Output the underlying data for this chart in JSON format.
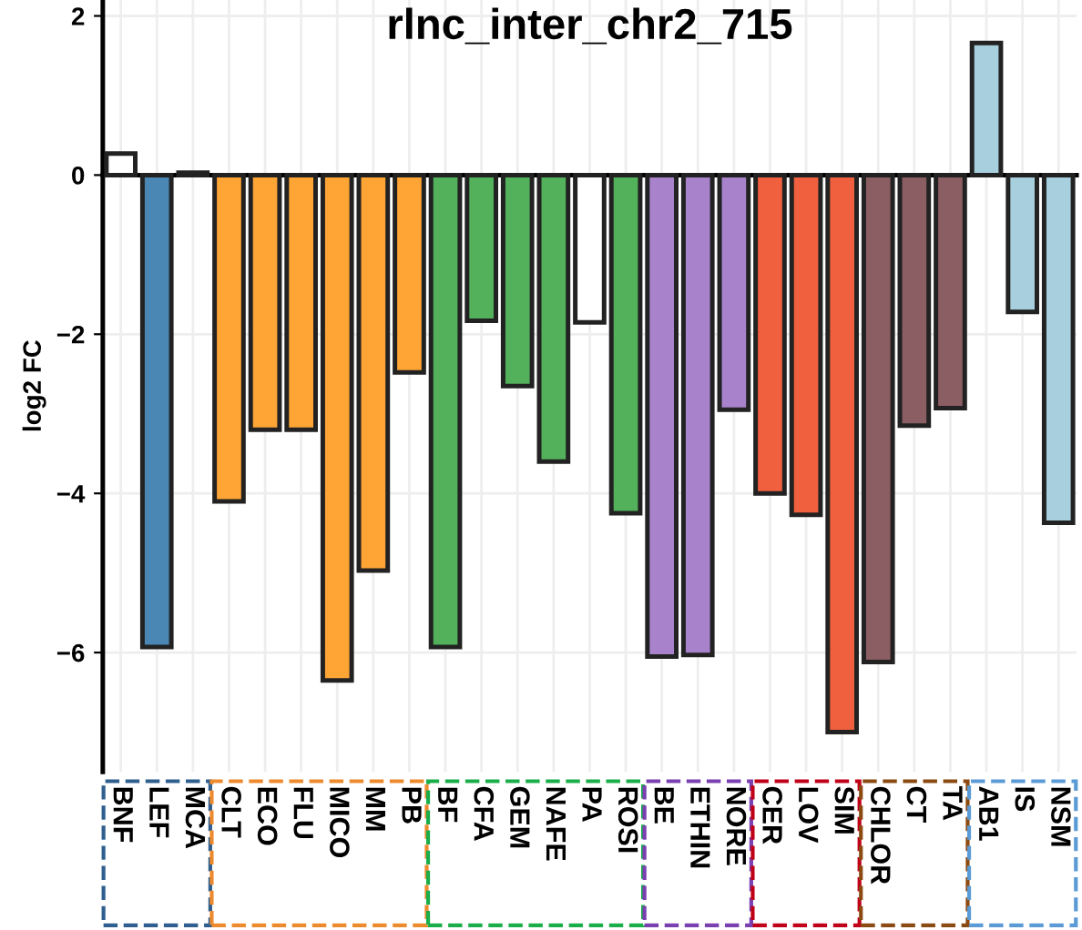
{
  "chart_data": {
    "type": "bar",
    "title": "rlnc_inter_chr2_715",
    "ylabel": "log2 FC",
    "categories": [
      "BNF",
      "LEF",
      "MCA",
      "CLT",
      "ECO",
      "FLU",
      "MICO",
      "MM",
      "PB",
      "BF",
      "CFA",
      "GEM",
      "NAFE",
      "PA",
      "ROSI",
      "BE",
      "ETHIN",
      "NORE",
      "CER",
      "LOV",
      "SIM",
      "CHLOR",
      "CT",
      "TA",
      "AB1",
      "IS",
      "NSM"
    ],
    "values": [
      0.27,
      -5.93,
      0.03,
      -4.1,
      -3.2,
      -3.2,
      -6.35,
      -4.97,
      -2.48,
      -5.93,
      -1.83,
      -2.65,
      -3.6,
      -1.85,
      -4.25,
      -6.05,
      -6.03,
      -2.95,
      -4.0,
      -4.27,
      -7.0,
      -6.12,
      -3.15,
      -2.93,
      1.66,
      -1.72,
      -4.37
    ],
    "colors": [
      "#ffffff",
      "#4a87b4",
      "#ffffff",
      "#ffa535",
      "#ffa535",
      "#ffa535",
      "#ffa535",
      "#ffa535",
      "#ffa535",
      "#52b15a",
      "#52b15a",
      "#52b15a",
      "#52b15a",
      "#ffffff",
      "#52b15a",
      "#a883cb",
      "#a883cb",
      "#a883cb",
      "#f0603e",
      "#f0603e",
      "#f0603e",
      "#8b5e63",
      "#8b5e63",
      "#8b5e63",
      "#a7cfdd",
      "#a7cfdd",
      "#a7cfdd"
    ],
    "ylim": [
      -7.5,
      2.2
    ],
    "yticks": [
      {
        "value": 2,
        "label": "2"
      },
      {
        "value": 0,
        "label": "0"
      },
      {
        "value": -2,
        "label": "−2"
      },
      {
        "value": -4,
        "label": "−4"
      },
      {
        "value": -6,
        "label": "−6"
      }
    ],
    "grid": true
  }
}
